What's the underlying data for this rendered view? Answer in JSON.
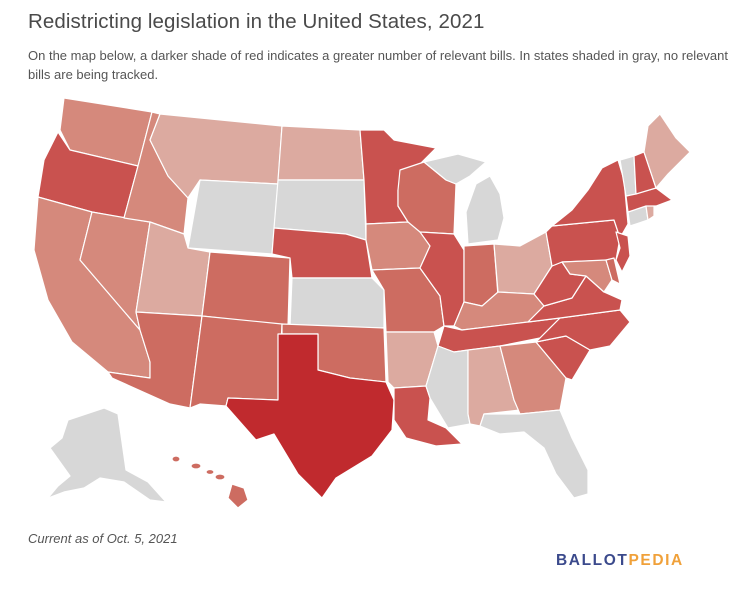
{
  "title": "Redistricting legislation in the United States, 2021",
  "subtitle": "On the map below, a darker shade of red indicates a greater number of relevant bills. In states shaded in gray, no relevant bills are being tracked.",
  "footnote": "Current as of Oct. 5, 2021",
  "logo": {
    "part1": "BALLOT",
    "part2": "PEDIA"
  },
  "colors": {
    "none": "#d7d7d7",
    "level1": "#dcaaa0",
    "level2": "#d5897c",
    "level3": "#cd6c61",
    "level4": "#c9524f",
    "level5": "#c02a2e",
    "logo_primary": "#3b4a8c",
    "logo_accent": "#f0a13a"
  },
  "states": [
    {
      "code": "WA",
      "level": 2
    },
    {
      "code": "OR",
      "level": 4
    },
    {
      "code": "CA",
      "level": 2
    },
    {
      "code": "NV",
      "level": 2
    },
    {
      "code": "ID",
      "level": 2
    },
    {
      "code": "MT",
      "level": 1
    },
    {
      "code": "WY",
      "level": 0
    },
    {
      "code": "UT",
      "level": 1
    },
    {
      "code": "AZ",
      "level": 3
    },
    {
      "code": "CO",
      "level": 3
    },
    {
      "code": "NM",
      "level": 3
    },
    {
      "code": "ND",
      "level": 1
    },
    {
      "code": "SD",
      "level": 0
    },
    {
      "code": "NE",
      "level": 4
    },
    {
      "code": "KS",
      "level": 0
    },
    {
      "code": "OK",
      "level": 3
    },
    {
      "code": "TX",
      "level": 5
    },
    {
      "code": "MN",
      "level": 4
    },
    {
      "code": "IA",
      "level": 2
    },
    {
      "code": "MO",
      "level": 3
    },
    {
      "code": "AR",
      "level": 1
    },
    {
      "code": "LA",
      "level": 4
    },
    {
      "code": "WI",
      "level": 3
    },
    {
      "code": "IL",
      "level": 4
    },
    {
      "code": "MI",
      "level": 0
    },
    {
      "code": "IN",
      "level": 3
    },
    {
      "code": "OH",
      "level": 1
    },
    {
      "code": "KY",
      "level": 2
    },
    {
      "code": "TN",
      "level": 4
    },
    {
      "code": "MS",
      "level": 0
    },
    {
      "code": "AL",
      "level": 1
    },
    {
      "code": "GA",
      "level": 2
    },
    {
      "code": "FL",
      "level": 0
    },
    {
      "code": "SC",
      "level": 4
    },
    {
      "code": "NC",
      "level": 4
    },
    {
      "code": "VA",
      "level": 4
    },
    {
      "code": "WV",
      "level": 4
    },
    {
      "code": "PA",
      "level": 4
    },
    {
      "code": "NY",
      "level": 4
    },
    {
      "code": "MD",
      "level": 2
    },
    {
      "code": "DE",
      "level": 3
    },
    {
      "code": "NJ",
      "level": 4
    },
    {
      "code": "CT",
      "level": 0
    },
    {
      "code": "RI",
      "level": 1
    },
    {
      "code": "MA",
      "level": 4
    },
    {
      "code": "VT",
      "level": 0
    },
    {
      "code": "NH",
      "level": 4
    },
    {
      "code": "ME",
      "level": 1
    },
    {
      "code": "AK",
      "level": 0
    },
    {
      "code": "HI",
      "level": 3
    }
  ]
}
